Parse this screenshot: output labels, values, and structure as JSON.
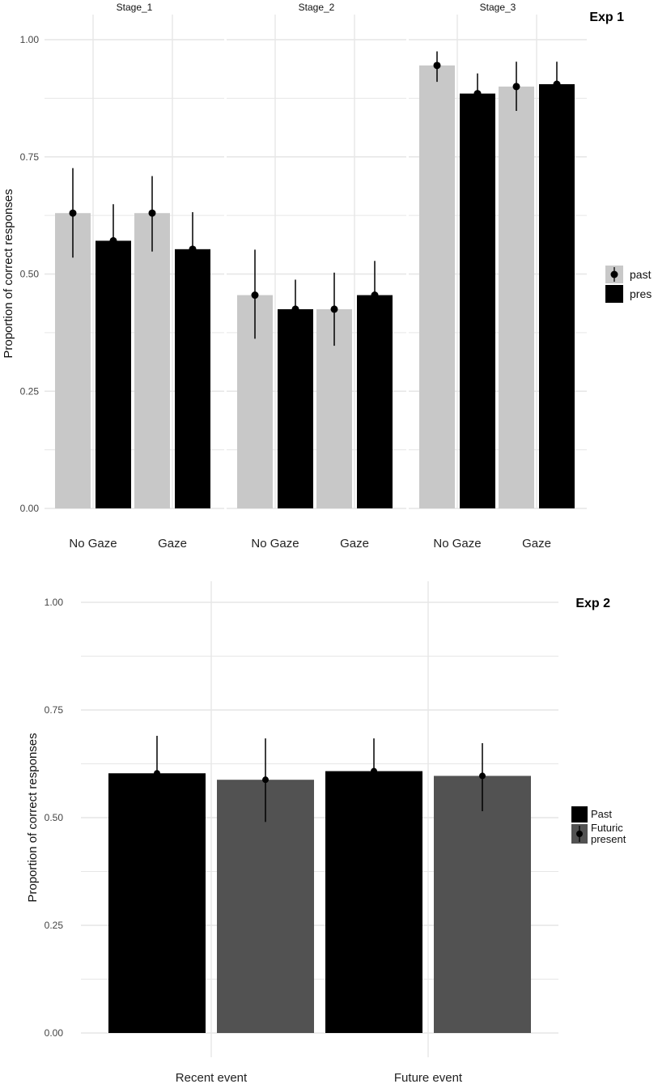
{
  "colors": {
    "past_exp1": "#c8c8c8",
    "pres_exp1": "#000000",
    "past_exp2": "#000000",
    "futuric_exp2": "#525252",
    "grid": "#e6e6e6",
    "point": "#000000"
  },
  "chart_data": [
    {
      "type": "bar",
      "title": "Exp 1",
      "xlabel": "",
      "ylabel": "Proportion of correct responses",
      "ylim": [
        0,
        1
      ],
      "yticks": [
        "0.00",
        "0.25",
        "0.50",
        "0.75",
        "1.00"
      ],
      "facets": [
        "Stage_1",
        "Stage_2",
        "Stage_3"
      ],
      "categories": [
        "No Gaze",
        "Gaze"
      ],
      "legend": [
        "past",
        "pres"
      ],
      "legend_position": "right",
      "series": [
        {
          "name": "past",
          "values": [
            [
              0.63,
              0.63
            ],
            [
              0.455,
              0.425
            ],
            [
              0.945,
              0.9
            ]
          ],
          "ci_low": [
            [
              0.535,
              0.548
            ],
            [
              0.362,
              0.347
            ],
            [
              0.91,
              0.848
            ]
          ],
          "ci_high": [
            [
              0.726,
              0.709
            ],
            [
              0.552,
              0.503
            ],
            [
              0.975,
              0.953
            ]
          ]
        },
        {
          "name": "pres",
          "values": [
            [
              0.571,
              0.553
            ],
            [
              0.425,
              0.455
            ],
            [
              0.885,
              0.905
            ]
          ],
          "ci_low": [
            [
              0.5,
              0.5
            ],
            [
              0.376,
              0.376
            ],
            [
              0.88,
              0.905
            ]
          ],
          "ci_high": [
            [
              0.649,
              0.632
            ],
            [
              0.488,
              0.528
            ],
            [
              0.928,
              0.953
            ]
          ]
        }
      ]
    },
    {
      "type": "bar",
      "title": "Exp 2",
      "xlabel": "",
      "ylabel": "Proportion of correct responses",
      "ylim": [
        0,
        1
      ],
      "yticks": [
        "0.00",
        "0.25",
        "0.50",
        "0.75",
        "1.00"
      ],
      "categories": [
        "Recent event",
        "Future event"
      ],
      "legend": [
        "Past",
        "Futuric\npresent"
      ],
      "legend_position": "right",
      "series": [
        {
          "name": "Past",
          "values": [
            0.603,
            0.608
          ],
          "ci_low": [
            0.59,
            0.59
          ],
          "ci_high": [
            0.69,
            0.684
          ]
        },
        {
          "name": "Futuric present",
          "values": [
            0.588,
            0.597
          ],
          "ci_low": [
            0.49,
            0.515
          ],
          "ci_high": [
            0.684,
            0.673
          ]
        }
      ]
    }
  ]
}
